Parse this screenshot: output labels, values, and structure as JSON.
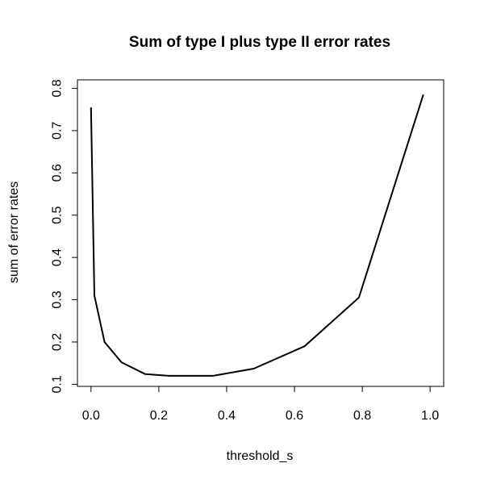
{
  "chart_data": {
    "type": "line",
    "title": "Sum of type I plus type II error rates",
    "xlabel": "threshold_s",
    "ylabel": "sum of error rates",
    "xlim": [
      -0.04,
      1.04
    ],
    "ylim": [
      0.095,
      0.82
    ],
    "x_ticks": [
      0.0,
      0.2,
      0.4,
      0.6,
      0.8,
      1.0
    ],
    "x_tick_labels": [
      "0.0",
      "0.2",
      "0.4",
      "0.6",
      "0.8",
      "1.0"
    ],
    "y_ticks": [
      0.1,
      0.2,
      0.3,
      0.4,
      0.5,
      0.6,
      0.7,
      0.8
    ],
    "y_tick_labels": [
      "0.1",
      "0.2",
      "0.3",
      "0.4",
      "0.5",
      "0.6",
      "0.7",
      "0.8"
    ],
    "grid": false,
    "series": [
      {
        "color": "#000000",
        "x": [
          0.0,
          0.01,
          0.04,
          0.09,
          0.16,
          0.23,
          0.36,
          0.48,
          0.63,
          0.79,
          0.98
        ],
        "y": [
          0.755,
          0.31,
          0.2,
          0.152,
          0.124,
          0.12,
          0.12,
          0.137,
          0.19,
          0.305,
          0.785
        ]
      }
    ]
  }
}
